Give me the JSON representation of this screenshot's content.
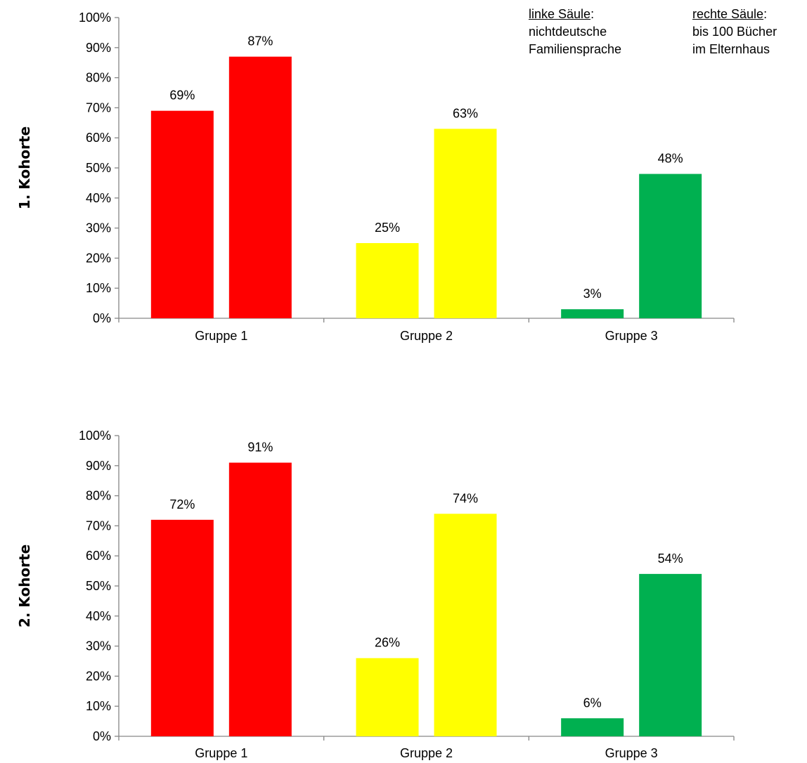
{
  "legend": {
    "left_title": "linke Säule",
    "left_line1": "nichtdeutsche",
    "left_line2": "Familiensprache",
    "right_title": "rechte Säule",
    "right_line1": "bis 100 Bücher",
    "right_line2": "im Elternhaus",
    "colon": ":"
  },
  "colors": {
    "group1": "#ff0000",
    "group2": "#ffff00",
    "group3": "#00b050",
    "axis": "#868686"
  },
  "chart_data": [
    {
      "type": "bar",
      "ylabel": "1.   Kohorte",
      "categories": [
        "Gruppe 1",
        "Gruppe 2",
        "Gruppe 3"
      ],
      "series": [
        {
          "values": [
            69,
            25,
            3
          ]
        },
        {
          "values": [
            87,
            63,
            48
          ]
        }
      ],
      "data_labels": [
        [
          "69%",
          "25%",
          "3%"
        ],
        [
          "87%",
          "63%",
          "48%"
        ]
      ],
      "ylim": [
        0,
        100
      ],
      "yticks": [
        "0%",
        "10%",
        "20%",
        "30%",
        "40%",
        "50%",
        "60%",
        "70%",
        "80%",
        "90%",
        "100%"
      ],
      "grid": false
    },
    {
      "type": "bar",
      "ylabel": "2.   Kohorte",
      "categories": [
        "Gruppe 1",
        "Gruppe 2",
        "Gruppe 3"
      ],
      "series": [
        {
          "values": [
            72,
            26,
            6
          ]
        },
        {
          "values": [
            91,
            74,
            54
          ]
        }
      ],
      "data_labels": [
        [
          "72%",
          "26%",
          "6%"
        ],
        [
          "91%",
          "74%",
          "54%"
        ]
      ],
      "ylim": [
        0,
        100
      ],
      "yticks": [
        "0%",
        "10%",
        "20%",
        "30%",
        "40%",
        "50%",
        "60%",
        "70%",
        "80%",
        "90%",
        "100%"
      ],
      "grid": false
    }
  ]
}
